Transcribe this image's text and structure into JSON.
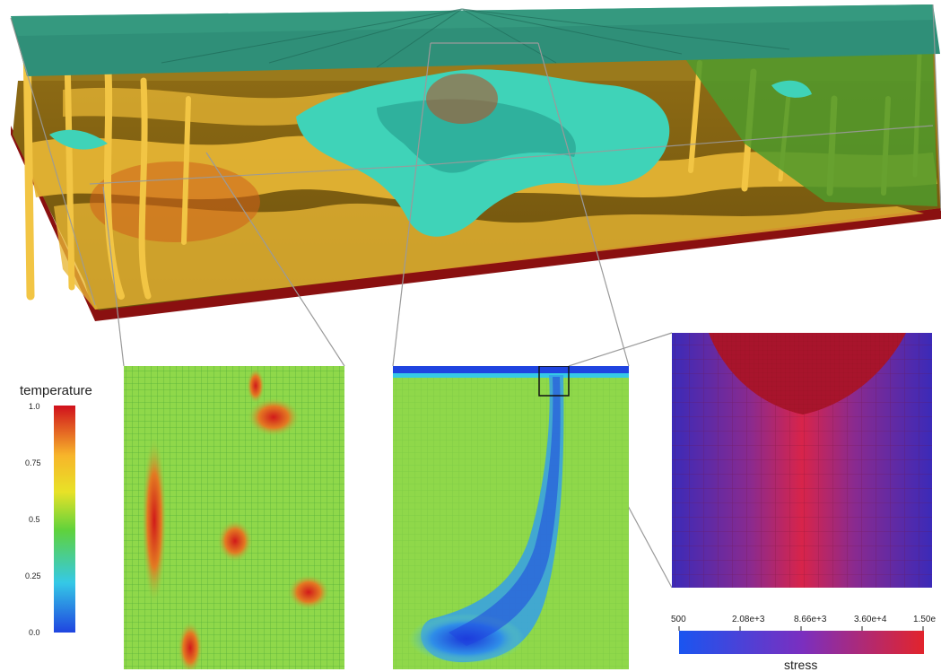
{
  "temperature_legend": {
    "title": "temperature",
    "ticks": [
      "1.0",
      "0.75",
      "0.5",
      "0.25",
      "0.0"
    ],
    "colors": [
      "#d0101c",
      "#f7b52a",
      "#e8e227",
      "#5fd23c",
      "#35c9e6",
      "#1f44e0"
    ]
  },
  "stress_legend": {
    "title": "stress",
    "ticks": [
      "500",
      "2.08e+3",
      "8.66e+3",
      "3.60e+4",
      "1.50e"
    ],
    "colors": [
      "#1a55f0",
      "#7a2fc0",
      "#e2242c"
    ]
  },
  "scene_colors": {
    "top_plate": "#2f8f78",
    "plumes": "#e7b634",
    "cold_slab": "#3fd3b8",
    "base": "#8a1010"
  }
}
